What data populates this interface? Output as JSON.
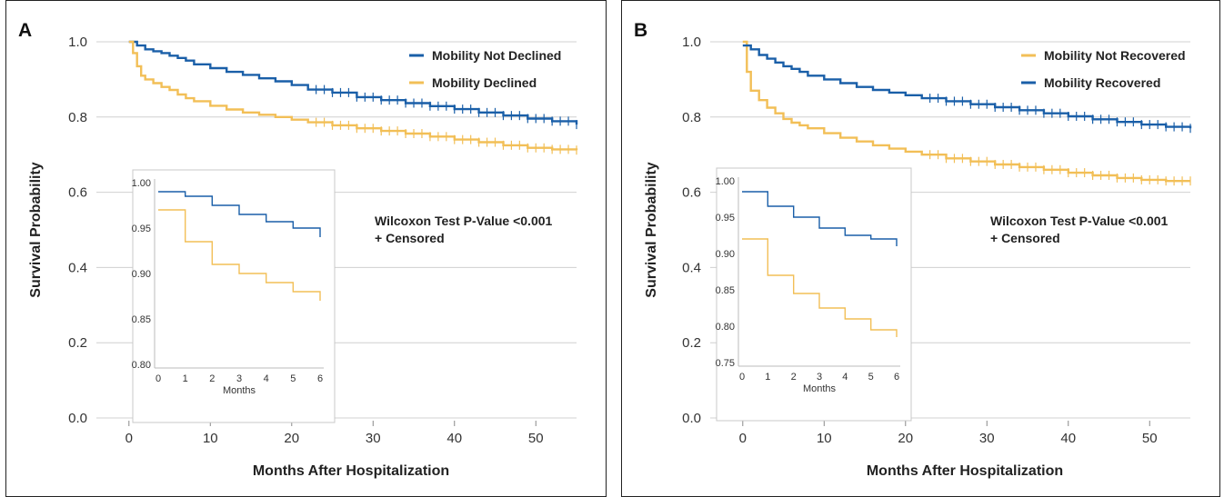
{
  "colors": {
    "blue": "#1a5fa8",
    "yellow": "#f2bf57",
    "grid": "#d0d0d0",
    "frame": "#222222"
  },
  "chart_data": [
    {
      "panel": "A",
      "type": "line",
      "subtype": "kaplan-meier step",
      "xlabel": "Months After Hospitalization",
      "ylabel": "Survival Probability",
      "xlim": [
        -4,
        55
      ],
      "ylim": [
        0,
        1.0
      ],
      "xticks": [
        0,
        10,
        20,
        30,
        40,
        50
      ],
      "yticks": [
        "0.0",
        "0.2",
        "0.4",
        "0.6",
        "0.8",
        "1.0"
      ],
      "grid": "horizontal",
      "legend": "top-right",
      "annotation_lines": [
        "Wilcoxon Test P-Value <0.001",
        "+ Censored"
      ],
      "series": [
        {
          "name": "Mobility Not Declined",
          "color": "blue",
          "x": [
            0,
            1,
            2,
            3,
            4,
            5,
            6,
            7,
            8,
            10,
            12,
            14,
            16,
            18,
            20,
            22,
            25,
            28,
            31,
            34,
            37,
            40,
            43,
            46,
            49,
            52,
            55
          ],
          "y": [
            1.0,
            0.99,
            0.98,
            0.975,
            0.97,
            0.963,
            0.957,
            0.95,
            0.94,
            0.93,
            0.92,
            0.912,
            0.903,
            0.895,
            0.885,
            0.873,
            0.865,
            0.853,
            0.845,
            0.837,
            0.829,
            0.821,
            0.812,
            0.804,
            0.796,
            0.789,
            0.78
          ],
          "censor_from": 23
        },
        {
          "name": "Mobility Declined",
          "color": "yellow",
          "x": [
            0,
            0.5,
            1,
            1.5,
            2,
            3,
            4,
            5,
            6,
            7,
            8,
            10,
            12,
            14,
            16,
            18,
            20,
            22,
            25,
            28,
            31,
            34,
            37,
            40,
            43,
            46,
            49,
            52,
            55
          ],
          "y": [
            1.0,
            0.97,
            0.935,
            0.91,
            0.9,
            0.89,
            0.88,
            0.872,
            0.86,
            0.85,
            0.842,
            0.83,
            0.82,
            0.812,
            0.806,
            0.8,
            0.793,
            0.786,
            0.778,
            0.77,
            0.763,
            0.756,
            0.748,
            0.74,
            0.733,
            0.725,
            0.718,
            0.714,
            0.712
          ],
          "censor_from": 23
        }
      ],
      "inset": {
        "xlabel": "Months",
        "xlim": [
          0,
          6
        ],
        "ylim": [
          0.8,
          1.0
        ],
        "xticks": [
          0,
          1,
          2,
          3,
          4,
          5,
          6
        ],
        "yticks": [
          "0.80",
          "0.85",
          "0.90",
          "0.95",
          "1.00"
        ],
        "series": [
          {
            "color": "blue",
            "x": [
              0,
              1,
              2,
              3,
              4,
              5,
              6
            ],
            "y": [
              0.99,
              0.985,
              0.975,
              0.965,
              0.957,
              0.95,
              0.94
            ]
          },
          {
            "color": "yellow",
            "x": [
              0,
              1,
              2,
              3,
              4,
              5,
              6
            ],
            "y": [
              0.97,
              0.935,
              0.91,
              0.9,
              0.89,
              0.88,
              0.87
            ]
          }
        ]
      }
    },
    {
      "panel": "B",
      "type": "line",
      "subtype": "kaplan-meier step",
      "xlabel": "Months After Hospitalization",
      "ylabel": "Survival Probability",
      "xlim": [
        -4,
        55
      ],
      "ylim": [
        0,
        1.0
      ],
      "xticks": [
        0,
        10,
        20,
        30,
        40,
        50
      ],
      "yticks": [
        "0.0",
        "0.2",
        "0.4",
        "0.6",
        "0.8",
        "1.0"
      ],
      "grid": "horizontal",
      "legend": "top-right",
      "annotation_lines": [
        "Wilcoxon Test P-Value <0.001",
        "+ Censored"
      ],
      "series": [
        {
          "name": "Mobility Not Recovered",
          "color": "yellow",
          "x": [
            0,
            0.5,
            1,
            2,
            3,
            4,
            5,
            6,
            7,
            8,
            10,
            12,
            14,
            16,
            18,
            20,
            22,
            25,
            28,
            31,
            34,
            37,
            40,
            43,
            46,
            49,
            52,
            55
          ],
          "y": [
            1.0,
            0.92,
            0.87,
            0.845,
            0.825,
            0.81,
            0.795,
            0.785,
            0.778,
            0.77,
            0.757,
            0.745,
            0.735,
            0.725,
            0.716,
            0.708,
            0.7,
            0.69,
            0.682,
            0.674,
            0.667,
            0.66,
            0.652,
            0.645,
            0.638,
            0.633,
            0.63,
            0.63
          ],
          "censor_from": 23
        },
        {
          "name": "Mobility Recovered",
          "color": "blue",
          "x": [
            0,
            1,
            2,
            3,
            4,
            5,
            6,
            7,
            8,
            10,
            12,
            14,
            16,
            18,
            20,
            22,
            25,
            28,
            31,
            34,
            37,
            40,
            43,
            46,
            49,
            52,
            55
          ],
          "y": [
            0.99,
            0.98,
            0.965,
            0.955,
            0.945,
            0.935,
            0.928,
            0.92,
            0.91,
            0.9,
            0.89,
            0.88,
            0.872,
            0.865,
            0.858,
            0.85,
            0.842,
            0.834,
            0.826,
            0.818,
            0.81,
            0.802,
            0.794,
            0.787,
            0.78,
            0.774,
            0.77
          ],
          "censor_from": 23
        }
      ],
      "inset": {
        "xlabel": "Months",
        "xlim": [
          0,
          6
        ],
        "ylim": [
          0.75,
          1.0
        ],
        "xticks": [
          0,
          1,
          2,
          3,
          4,
          5,
          6
        ],
        "yticks": [
          "0.75",
          "0.80",
          "0.85",
          "0.90",
          "0.95",
          "1.00"
        ],
        "series": [
          {
            "color": "blue",
            "x": [
              0,
              1,
              2,
              3,
              4,
              5,
              6
            ],
            "y": [
              0.985,
              0.965,
              0.95,
              0.935,
              0.925,
              0.92,
              0.91
            ]
          },
          {
            "color": "yellow",
            "x": [
              0,
              1,
              2,
              3,
              4,
              5,
              6
            ],
            "y": [
              0.92,
              0.87,
              0.845,
              0.825,
              0.81,
              0.795,
              0.785
            ]
          }
        ]
      }
    }
  ]
}
